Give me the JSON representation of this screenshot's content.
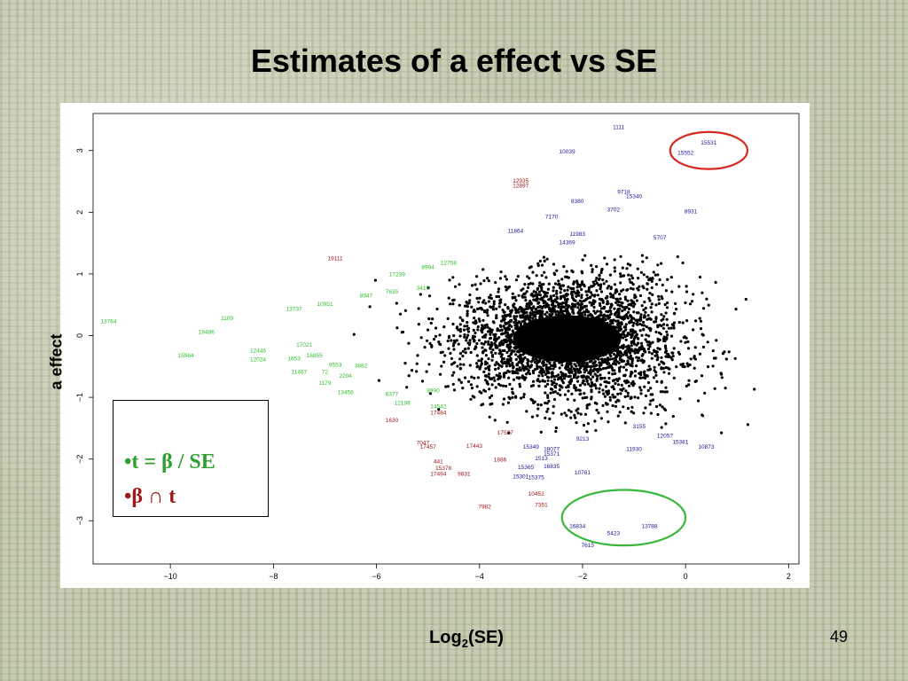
{
  "slide": {
    "title": "Estimates of a effect vs SE",
    "page_number": "49"
  },
  "chart_data": {
    "type": "scatter",
    "title": "",
    "xlabel_main": "Log",
    "xlabel_sub": "2",
    "xlabel_suffix": "(SE)",
    "ylabel": "a effect",
    "xlim": [
      -11.5,
      2.2
    ],
    "ylim": [
      -3.7,
      3.6
    ],
    "xticks": [
      -10,
      -8,
      -6,
      -4,
      -2,
      0,
      2
    ],
    "yticks": [
      -3,
      -2,
      -1,
      0,
      1,
      2,
      3
    ],
    "xtick_labels": [
      "−10",
      "−8",
      "−6",
      "−4",
      "−2",
      "0",
      "2"
    ],
    "ytick_labels": [
      "−3",
      "−2",
      "−1",
      "0",
      "1",
      "2",
      "3"
    ],
    "colors": {
      "points": "#000000",
      "green": "#2fbf2f",
      "red": "#a01818",
      "blue": "#1a1a9a",
      "red_circle": "#d82a1e",
      "green_circle": "#3ab83a"
    },
    "cloud": {
      "description": "dense black point cloud",
      "center": [
        -2.3,
        -0.05
      ],
      "spread_x": 1.1,
      "spread_y": 0.45,
      "x_range": [
        -7.3,
        1.7
      ]
    },
    "labeled_points": [
      {
        "label": "13764",
        "x": -11.2,
        "y": 0.2,
        "group": "green"
      },
      {
        "label": "1109",
        "x": -8.9,
        "y": 0.25,
        "group": "green"
      },
      {
        "label": "18486",
        "x": -9.3,
        "y": 0.03,
        "group": "green"
      },
      {
        "label": "15984",
        "x": -9.7,
        "y": -0.35,
        "group": "green"
      },
      {
        "label": "12446",
        "x": -8.3,
        "y": -0.27,
        "group": "green"
      },
      {
        "label": "12024",
        "x": -8.3,
        "y": -0.42,
        "group": "green"
      },
      {
        "label": "1653",
        "x": -7.6,
        "y": -0.4,
        "group": "green"
      },
      {
        "label": "11467",
        "x": -7.5,
        "y": -0.62,
        "group": "green"
      },
      {
        "label": "72",
        "x": -7.0,
        "y": -0.62,
        "group": "green"
      },
      {
        "label": "1179",
        "x": -7.0,
        "y": -0.8,
        "group": "green"
      },
      {
        "label": "13456",
        "x": -6.6,
        "y": -0.95,
        "group": "green"
      },
      {
        "label": "13737",
        "x": -7.6,
        "y": 0.4,
        "group": "green"
      },
      {
        "label": "10951",
        "x": -7.0,
        "y": 0.48,
        "group": "green"
      },
      {
        "label": "2204",
        "x": -6.6,
        "y": -0.68,
        "group": "green"
      },
      {
        "label": "9553",
        "x": -6.8,
        "y": -0.5,
        "group": "green"
      },
      {
        "label": "3882",
        "x": -6.3,
        "y": -0.52,
        "group": "green"
      },
      {
        "label": "16855",
        "x": -7.2,
        "y": -0.35,
        "group": "green"
      },
      {
        "label": "17021",
        "x": -7.4,
        "y": -0.18,
        "group": "green"
      },
      {
        "label": "8947",
        "x": -6.2,
        "y": 0.62,
        "group": "green"
      },
      {
        "label": "7635",
        "x": -5.7,
        "y": 0.68,
        "group": "green"
      },
      {
        "label": "3419",
        "x": -5.1,
        "y": 0.74,
        "group": "green"
      },
      {
        "label": "17239",
        "x": -5.6,
        "y": 0.96,
        "group": "green"
      },
      {
        "label": "8994",
        "x": -5.0,
        "y": 1.08,
        "group": "green"
      },
      {
        "label": "12758",
        "x": -4.6,
        "y": 1.15,
        "group": "green"
      },
      {
        "label": "12198",
        "x": -5.5,
        "y": -1.12,
        "group": "green"
      },
      {
        "label": "14542",
        "x": -4.8,
        "y": -1.18,
        "group": "green"
      },
      {
        "label": "6377",
        "x": -5.7,
        "y": -0.98,
        "group": "green"
      },
      {
        "label": "8990",
        "x": -4.9,
        "y": -0.92,
        "group": "green"
      },
      {
        "label": "19111",
        "x": -6.8,
        "y": 1.22,
        "group": "red"
      },
      {
        "label": "12935",
        "x": -3.2,
        "y": 2.48,
        "group": "red"
      },
      {
        "label": "12897",
        "x": -3.2,
        "y": 2.4,
        "group": "red"
      },
      {
        "label": "1630",
        "x": -5.7,
        "y": -1.4,
        "group": "red"
      },
      {
        "label": "17484",
        "x": -4.8,
        "y": -1.28,
        "group": "red"
      },
      {
        "label": "7047",
        "x": -5.1,
        "y": -1.77,
        "group": "red"
      },
      {
        "label": "17457",
        "x": -5.0,
        "y": -1.83,
        "group": "red"
      },
      {
        "label": "17443",
        "x": -4.1,
        "y": -1.82,
        "group": "red"
      },
      {
        "label": "441",
        "x": -4.8,
        "y": -2.07,
        "group": "red"
      },
      {
        "label": "15378",
        "x": -4.7,
        "y": -2.18,
        "group": "red"
      },
      {
        "label": "17494",
        "x": -4.8,
        "y": -2.27,
        "group": "red"
      },
      {
        "label": "9831",
        "x": -4.3,
        "y": -2.27,
        "group": "red"
      },
      {
        "label": "1886",
        "x": -3.6,
        "y": -2.04,
        "group": "red"
      },
      {
        "label": "7982",
        "x": -3.9,
        "y": -2.8,
        "group": "red"
      },
      {
        "label": "7351",
        "x": -2.8,
        "y": -2.77,
        "group": "red"
      },
      {
        "label": "10452",
        "x": -2.9,
        "y": -2.59,
        "group": "red"
      },
      {
        "label": "17537",
        "x": -3.5,
        "y": -1.6,
        "group": "red"
      },
      {
        "label": "1111",
        "x": -1.3,
        "y": 3.35,
        "group": "blue"
      },
      {
        "label": "10039",
        "x": -2.3,
        "y": 2.95,
        "group": "blue"
      },
      {
        "label": "15531",
        "x": 0.45,
        "y": 3.1,
        "group": "blue"
      },
      {
        "label": "15552",
        "x": 0.0,
        "y": 2.93,
        "group": "blue"
      },
      {
        "label": "9718",
        "x": -1.2,
        "y": 2.3,
        "group": "blue"
      },
      {
        "label": "15340",
        "x": -1.0,
        "y": 2.23,
        "group": "blue"
      },
      {
        "label": "8380",
        "x": -2.1,
        "y": 2.15,
        "group": "blue"
      },
      {
        "label": "3702",
        "x": -1.4,
        "y": 2.01,
        "group": "blue"
      },
      {
        "label": "8931",
        "x": 0.1,
        "y": 1.98,
        "group": "blue"
      },
      {
        "label": "7170",
        "x": -2.6,
        "y": 1.9,
        "group": "blue"
      },
      {
        "label": "11864",
        "x": -3.3,
        "y": 1.67,
        "group": "blue"
      },
      {
        "label": "11983",
        "x": -2.1,
        "y": 1.62,
        "group": "blue"
      },
      {
        "label": "14369",
        "x": -2.3,
        "y": 1.48,
        "group": "blue"
      },
      {
        "label": "5707",
        "x": -0.5,
        "y": 1.56,
        "group": "blue"
      },
      {
        "label": "15381",
        "x": -0.1,
        "y": -1.75,
        "group": "blue"
      },
      {
        "label": "10873",
        "x": 0.4,
        "y": -1.83,
        "group": "blue"
      },
      {
        "label": "3155",
        "x": -0.9,
        "y": -1.5,
        "group": "blue"
      },
      {
        "label": "11930",
        "x": -1.0,
        "y": -1.87,
        "group": "blue"
      },
      {
        "label": "10761",
        "x": -2.0,
        "y": -2.25,
        "group": "blue"
      },
      {
        "label": "16834",
        "x": -2.1,
        "y": -3.12,
        "group": "blue"
      },
      {
        "label": "5423",
        "x": -1.4,
        "y": -3.23,
        "group": "blue"
      },
      {
        "label": "13788",
        "x": -0.7,
        "y": -3.12,
        "group": "blue"
      },
      {
        "label": "7615",
        "x": -1.9,
        "y": -3.43,
        "group": "blue"
      },
      {
        "label": "15349",
        "x": -3.0,
        "y": -1.83,
        "group": "blue"
      },
      {
        "label": "18077",
        "x": -2.6,
        "y": -1.87,
        "group": "blue"
      },
      {
        "label": "15371",
        "x": -2.6,
        "y": -1.95,
        "group": "blue"
      },
      {
        "label": "1513",
        "x": -2.8,
        "y": -2.02,
        "group": "blue"
      },
      {
        "label": "15365",
        "x": -3.1,
        "y": -2.16,
        "group": "blue"
      },
      {
        "label": "16835",
        "x": -2.6,
        "y": -2.15,
        "group": "blue"
      },
      {
        "label": "15375",
        "x": -2.9,
        "y": -2.33,
        "group": "blue"
      },
      {
        "label": "15301",
        "x": -3.2,
        "y": -2.31,
        "group": "blue"
      },
      {
        "label": "9213",
        "x": -2.0,
        "y": -1.7,
        "group": "blue"
      },
      {
        "label": "12057",
        "x": -0.4,
        "y": -1.65,
        "group": "blue"
      }
    ],
    "annotation_circles": [
      {
        "color_key": "red_circle",
        "cx": 0.45,
        "cy": 3.0,
        "rx": 0.75,
        "ry": 0.3
      },
      {
        "color_key": "green_circle",
        "cx": -1.2,
        "cy": -2.95,
        "rx": 1.2,
        "ry": 0.45
      }
    ],
    "legend_box": {
      "line1_bullet": "•",
      "line1_text": "t = β  / SE",
      "line2_bullet": "•",
      "line2_text": "β ∩ t"
    }
  }
}
